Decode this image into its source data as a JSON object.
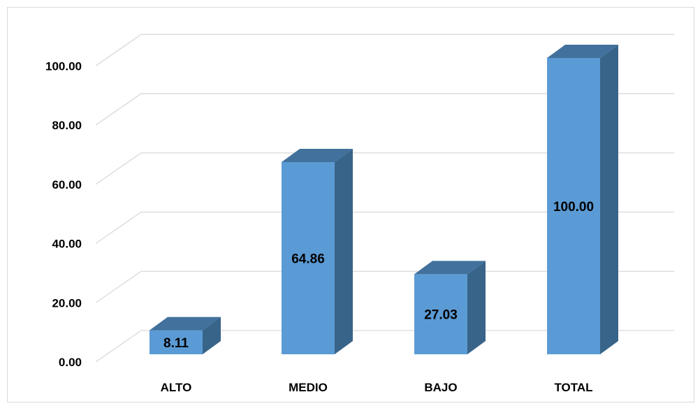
{
  "chart_data": {
    "type": "bar",
    "categories": [
      "ALTO",
      "MEDIO",
      "BAJO",
      "TOTAL"
    ],
    "values": [
      8.11,
      64.86,
      27.03,
      100.0
    ],
    "data_labels": [
      "8.11",
      "64.86",
      "27.03",
      "100.00"
    ],
    "yticks": [
      "0.00",
      "20.00",
      "40.00",
      "60.00",
      "80.00",
      "100.00"
    ],
    "ylim": [
      0,
      100
    ],
    "grid": true,
    "legend": "none",
    "style": "3d-column",
    "colors": {
      "front": "#5b9bd5",
      "top": "#41719c",
      "side": "#386489",
      "grid": "#d9d9d9"
    }
  }
}
